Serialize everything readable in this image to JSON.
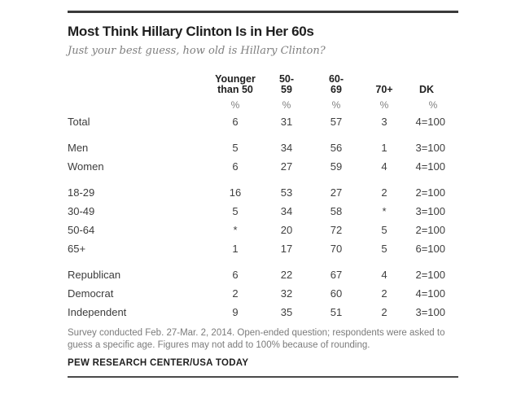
{
  "chart_data": {
    "type": "table",
    "title": "Most Think Hillary Clinton Is in Her 60s",
    "subtitle": "Just your best guess, how old is Hillary Clinton?",
    "columns": [
      {
        "line1": "Younger",
        "line2": "than 50"
      },
      {
        "line1": "50-",
        "line2": "59"
      },
      {
        "line1": "60-",
        "line2": "69"
      },
      {
        "line1": "",
        "line2": "70+"
      },
      {
        "line1": "",
        "line2": "DK"
      }
    ],
    "unit_row": [
      "%",
      "%",
      "%",
      "%",
      "%"
    ],
    "groups": [
      {
        "name": "total",
        "rows": [
          {
            "label": "Total",
            "values": [
              "6",
              "31",
              "57",
              "3",
              "4=100"
            ]
          }
        ]
      },
      {
        "name": "gender",
        "rows": [
          {
            "label": "Men",
            "values": [
              "5",
              "34",
              "56",
              "1",
              "3=100"
            ]
          },
          {
            "label": "Women",
            "values": [
              "6",
              "27",
              "59",
              "4",
              "4=100"
            ]
          }
        ]
      },
      {
        "name": "age",
        "rows": [
          {
            "label": "18-29",
            "values": [
              "16",
              "53",
              "27",
              "2",
              "2=100"
            ]
          },
          {
            "label": "30-49",
            "values": [
              "5",
              "34",
              "58",
              "*",
              "3=100"
            ]
          },
          {
            "label": "50-64",
            "values": [
              "*",
              "20",
              "72",
              "5",
              "2=100"
            ]
          },
          {
            "label": "65+",
            "values": [
              "1",
              "17",
              "70",
              "5",
              "6=100"
            ]
          }
        ]
      },
      {
        "name": "party",
        "rows": [
          {
            "label": "Republican",
            "values": [
              "6",
              "22",
              "67",
              "4",
              "2=100"
            ]
          },
          {
            "label": "Democrat",
            "values": [
              "2",
              "32",
              "60",
              "2",
              "4=100"
            ]
          },
          {
            "label": "Independent",
            "values": [
              "9",
              "35",
              "51",
              "2",
              "3=100"
            ]
          }
        ]
      }
    ],
    "note": "Survey conducted Feb. 27-Mar. 2, 2014. Open-ended question; respondents were asked to guess a specific age. Figures may not add to 100% because of rounding.",
    "source": "PEW RESEARCH CENTER/USA TODAY"
  },
  "colors": {
    "title_text": "#1f1f1f",
    "subtitle_text": "#7f7f7f",
    "body_text": "#3f3f3f",
    "muted_text": "#808080",
    "rule_top": "#3a3a3a",
    "rule_bottom": "#4a4a4a",
    "background": "#ffffff"
  }
}
